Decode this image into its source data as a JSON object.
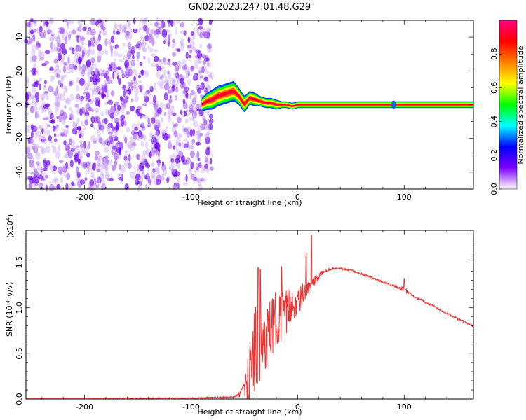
{
  "title": "GN02.2023.247.01.48.G29",
  "chart_data": [
    {
      "type": "heatmap",
      "xlabel": "Height of straight line (km)",
      "ylabel": "Frequency (Hz)",
      "xlim": [
        -255,
        165
      ],
      "ylim": [
        -50,
        50
      ],
      "x_ticks": [
        -200,
        -100,
        0,
        100
      ],
      "y_ticks": [
        -40,
        -20,
        0,
        20,
        40
      ],
      "noise_region_x": [
        -255,
        -80
      ],
      "ridge": {
        "x": [
          -90,
          -85,
          -80,
          -75,
          -70,
          -65,
          -60,
          -55,
          -50,
          -45,
          -40,
          -35,
          -30,
          -25,
          -20,
          -15,
          -10,
          -5,
          0,
          165
        ],
        "freq": [
          0,
          2,
          3,
          5,
          6,
          7,
          8,
          5,
          0,
          4,
          3,
          2,
          1,
          1,
          0,
          0,
          0,
          -1,
          0,
          0
        ],
        "spread": [
          4,
          5,
          6,
          6,
          6,
          6,
          6,
          5,
          5,
          4,
          4,
          3,
          3,
          3,
          3,
          2,
          2,
          2,
          2,
          2
        ]
      },
      "colorbar": {
        "label": "Normalized spectral amplitude",
        "ticks": [
          0.0,
          0.2,
          0.4,
          0.6,
          0.8
        ],
        "range": [
          0,
          1
        ],
        "colors": [
          "#ffffff",
          "#8000ff",
          "#0000ff",
          "#00ffff",
          "#00ff00",
          "#ffff00",
          "#ff8000",
          "#ff0000",
          "#ff0080"
        ]
      }
    },
    {
      "type": "line",
      "xlabel": "Height of straight line (km)",
      "ylabel": "SNR (10 * v/v)",
      "y_multiplier": "(x10",
      "y_multiplier_exp": "4",
      "xlim": [
        -255,
        165
      ],
      "ylim": [
        0.0,
        1.85
      ],
      "x_ticks": [
        -200,
        -100,
        0,
        100
      ],
      "y_ticks": [
        0.0,
        0.5,
        1.0,
        1.5
      ],
      "y_tick_labels": [
        "0.0",
        "0.5",
        "1.0",
        "1.5"
      ],
      "color": "#ee3333",
      "series": [
        {
          "x": [
            -255,
            -200,
            -150,
            -100,
            -60,
            -55,
            -50,
            -45,
            -40,
            -35,
            -30,
            -25,
            -20,
            -15,
            -10,
            -5,
            0,
            5,
            10,
            15,
            20,
            25,
            30,
            35,
            40,
            50,
            60,
            70,
            80,
            90,
            100,
            110,
            120,
            130,
            140,
            150,
            165
          ],
          "y": [
            0.01,
            0.01,
            0.01,
            0.01,
            0.02,
            0.05,
            0.1,
            0.25,
            0.6,
            0.55,
            0.65,
            0.75,
            0.9,
            0.9,
            0.95,
            1.05,
            1.05,
            1.15,
            1.2,
            1.28,
            1.35,
            1.4,
            1.42,
            1.43,
            1.43,
            1.41,
            1.37,
            1.33,
            1.28,
            1.24,
            1.2,
            1.12,
            1.06,
            1.0,
            0.94,
            0.88,
            0.8
          ],
          "noise": [
            0,
            0,
            0.005,
            0.005,
            0.01,
            0.03,
            0.08,
            0.35,
            0.5,
            0.45,
            0.35,
            0.35,
            0.3,
            0.28,
            0.25,
            0.2,
            0.15,
            0.12,
            0.08,
            0.06,
            0.04,
            0.02,
            0.015,
            0.012,
            0.012,
            0.012,
            0.012,
            0.012,
            0.012,
            0.015,
            0.03,
            0.012,
            0.012,
            0.012,
            0.012,
            0.012,
            0.012
          ]
        }
      ],
      "spikes": [
        {
          "x": -37,
          "y": 1.44
        },
        {
          "x": -35,
          "y": 1.42
        },
        {
          "x": -15,
          "y": 1.45
        },
        {
          "x": 13,
          "y": 1.8
        },
        {
          "x": 8,
          "y": 1.6
        },
        {
          "x": 100,
          "y": 1.32
        }
      ]
    }
  ]
}
